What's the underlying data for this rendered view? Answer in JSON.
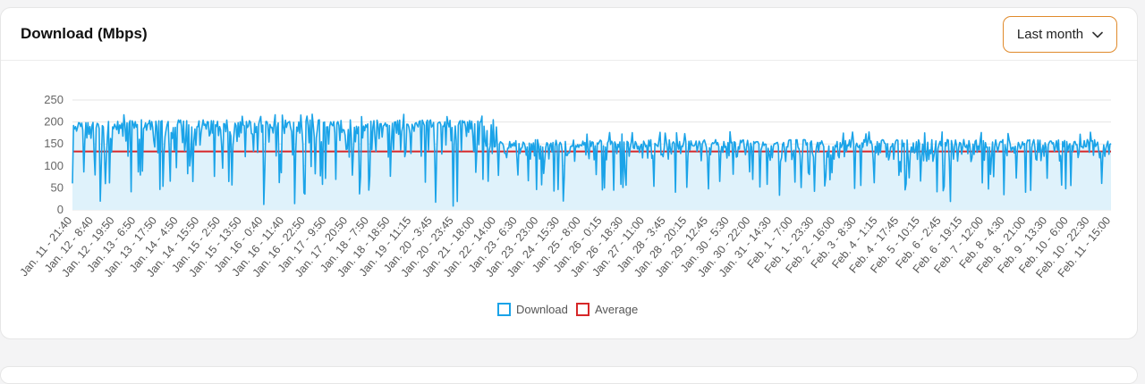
{
  "header": {
    "title": "Download (Mbps)",
    "range_select": {
      "selected": "Last month"
    }
  },
  "colors": {
    "download": "#1aa3e8",
    "download_fill": "#dff2fb",
    "average": "#d62728",
    "dropdown_border": "#e08a2b"
  },
  "icons": {
    "dropdown": "chevron-down-icon"
  },
  "chart_data": {
    "type": "line",
    "title": "",
    "xlabel": "",
    "ylabel": "",
    "ylim": [
      0,
      250
    ],
    "yticks": [
      0,
      50,
      100,
      150,
      200,
      250
    ],
    "grid": true,
    "legend_position": "bottom",
    "x_tick_labels": [
      "Jan. 11 - 21:40",
      "Jan. 12 - 8:40",
      "Jan. 12 - 19:50",
      "Jan. 13 - 6:50",
      "Jan. 13 - 17:50",
      "Jan. 14 - 4:50",
      "Jan. 14 - 15:50",
      "Jan. 15 - 2:50",
      "Jan. 15 - 13:50",
      "Jan. 16 - 0:40",
      "Jan. 16 - 11:40",
      "Jan. 16 - 22:50",
      "Jan. 17 - 9:50",
      "Jan. 17 - 20:50",
      "Jan. 18 - 7:50",
      "Jan. 18 - 18:50",
      "Jan. 19 - 11:15",
      "Jan. 20 - 3:45",
      "Jan. 20 - 23:45",
      "Jan. 21 - 18:00",
      "Jan. 22 - 14:00",
      "Jan. 23 - 6:30",
      "Jan. 23 - 23:00",
      "Jan. 24 - 15:30",
      "Jan. 25 - 8:00",
      "Jan. 26 - 0:15",
      "Jan. 26 - 18:30",
      "Jan. 27 - 11:00",
      "Jan. 28 - 3:45",
      "Jan. 28 - 20:15",
      "Jan. 29 - 12:45",
      "Jan. 30 - 5:30",
      "Jan. 30 - 22:00",
      "Jan. 31 - 14:30",
      "Feb. 1 - 7:00",
      "Feb. 1 - 23:30",
      "Feb. 2 - 16:00",
      "Feb. 3 - 8:30",
      "Feb. 4 - 1:15",
      "Feb. 4 - 17:45",
      "Feb. 5 - 10:15",
      "Feb. 6 - 2:45",
      "Feb. 6 - 19:15",
      "Feb. 7 - 12:00",
      "Feb. 8 - 4:30",
      "Feb. 8 - 21:00",
      "Feb. 9 - 13:30",
      "Feb. 10 - 6:00",
      "Feb. 10 - 22:30",
      "Feb. 11 - 15:00"
    ],
    "series": [
      {
        "name": "Download",
        "segments": [
          {
            "from_tick": 0,
            "to_tick": 20,
            "typical_high": 205,
            "typical_low": 120,
            "min": 5,
            "max": 218
          },
          {
            "from_tick": 20,
            "to_tick": 49,
            "typical_high": 160,
            "typical_low": 110,
            "min": 10,
            "max": 178
          }
        ]
      },
      {
        "name": "Average",
        "value": 133
      }
    ]
  }
}
